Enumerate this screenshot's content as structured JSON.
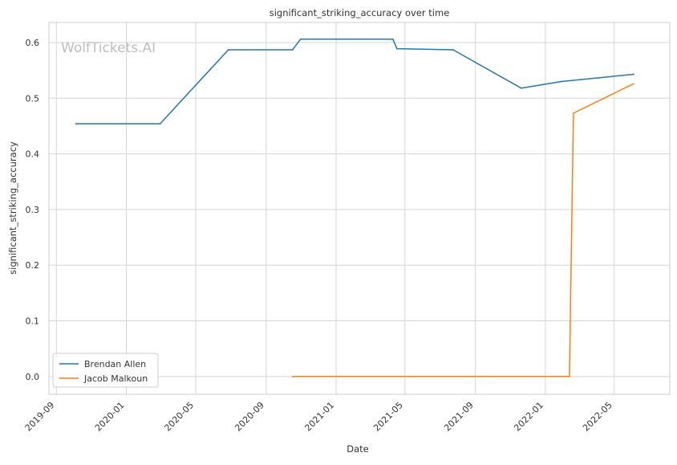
{
  "chart_data": {
    "type": "line",
    "title": "significant_striking_accuracy over time",
    "xlabel": "Date",
    "ylabel": "significant_striking_accuracy",
    "watermark": "WolfTickets.AI",
    "x_ticks": [
      "2019-09",
      "2020-01",
      "2020-05",
      "2020-09",
      "2021-01",
      "2021-05",
      "2021-09",
      "2022-01",
      "2022-05"
    ],
    "y_ticks": [
      "0.0",
      "0.1",
      "0.2",
      "0.3",
      "0.4",
      "0.5",
      "0.6"
    ],
    "xlim": [
      "2019-08-19",
      "2022-08-06"
    ],
    "ylim": [
      -0.032,
      0.636
    ],
    "grid": true,
    "legend_position": "lower-left",
    "series": [
      {
        "name": "Brendan Allen",
        "color": "#1f77b4",
        "points": [
          {
            "x": "2019-10-05",
            "y": 0.454
          },
          {
            "x": "2020-02-29",
            "y": 0.454
          },
          {
            "x": "2020-06-27",
            "y": 0.587
          },
          {
            "x": "2020-10-17",
            "y": 0.587
          },
          {
            "x": "2020-10-31",
            "y": 0.606
          },
          {
            "x": "2021-04-10",
            "y": 0.606
          },
          {
            "x": "2021-04-17",
            "y": 0.589
          },
          {
            "x": "2021-07-24",
            "y": 0.587
          },
          {
            "x": "2021-11-20",
            "y": 0.518
          },
          {
            "x": "2022-01-29",
            "y": 0.53
          },
          {
            "x": "2022-06-04",
            "y": 0.543
          }
        ]
      },
      {
        "name": "Jacob Malkoun",
        "color": "#ff7f0e",
        "points": [
          {
            "x": "2020-10-17",
            "y": 0.0
          },
          {
            "x": "2022-02-12",
            "y": 0.0
          },
          {
            "x": "2022-02-19",
            "y": 0.473
          },
          {
            "x": "2022-06-04",
            "y": 0.526
          }
        ]
      }
    ]
  }
}
